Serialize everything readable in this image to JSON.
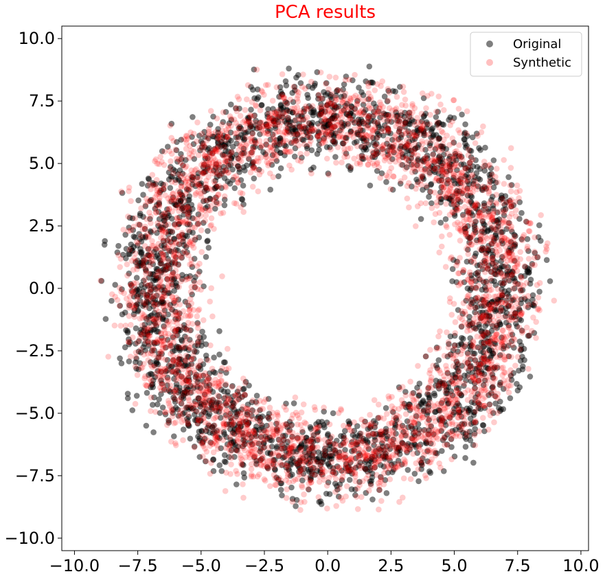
{
  "chart_data": {
    "type": "scatter",
    "title": "PCA results",
    "title_color": "#ff0000",
    "xlabel": "",
    "ylabel": "",
    "xlim": [
      -10.5,
      10.3
    ],
    "ylim": [
      -10.5,
      10.5
    ],
    "x_ticks": [
      -10.0,
      -7.5,
      -5.0,
      -2.5,
      0.0,
      2.5,
      5.0,
      7.5,
      10.0
    ],
    "x_tick_labels": [
      "−10.0",
      "−7.5",
      "−5.0",
      "−2.5",
      "0.0",
      "2.5",
      "5.0",
      "7.5",
      "10.0"
    ],
    "y_ticks": [
      10.0,
      7.5,
      5.0,
      2.5,
      0.0,
      -2.5,
      -5.0,
      -7.5,
      -10.0
    ],
    "y_tick_labels": [
      "10.0",
      "7.5",
      "5.0",
      "2.5",
      "0.0",
      "−2.5",
      "−5.0",
      "−7.5",
      "−10.0"
    ],
    "grid": false,
    "legend_position": "top-right",
    "series": [
      {
        "name": "Original",
        "color": "#000000",
        "alpha": 0.5,
        "distribution": "annulus",
        "inner_radius": 4.5,
        "outer_radius": 9.3,
        "approx_points": 2600
      },
      {
        "name": "Synthetic",
        "color": "#ff0000",
        "alpha": 0.2,
        "distribution": "annulus",
        "inner_radius": 4.3,
        "outer_radius": 9.3,
        "approx_points": 3400
      }
    ]
  }
}
